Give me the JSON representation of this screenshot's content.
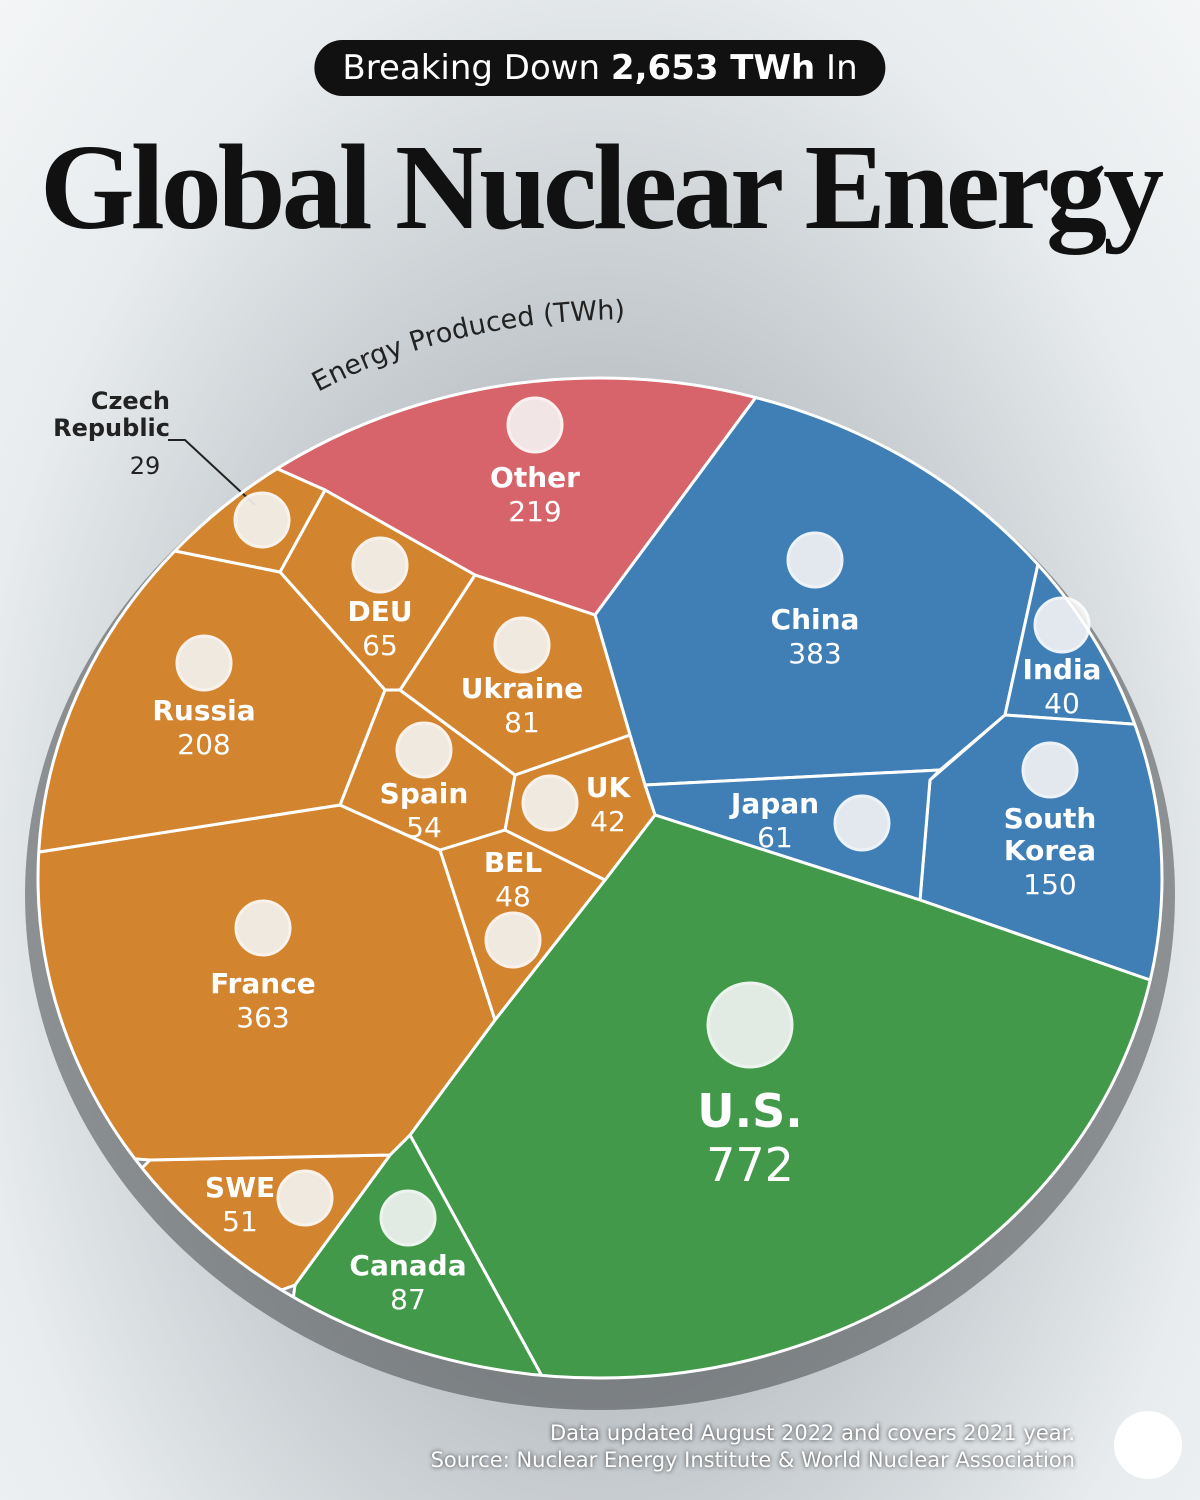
{
  "header": {
    "prefix": "Breaking Down",
    "highlight": "2,653 TWh",
    "suffix": "In"
  },
  "chart_data": {
    "type": "voronoi_treemap",
    "title": "Global Nuclear Energy",
    "subtitle": "Energy Produced (TWh)",
    "categories": [
      "Other",
      "China",
      "India",
      "South Korea",
      "Japan",
      "U.S.",
      "Canada",
      "SWE",
      "France",
      "BEL",
      "UK",
      "Spain",
      "Ukraine",
      "DEU",
      "Russia",
      "Czech Republic"
    ],
    "values": [
      219,
      383,
      40,
      150,
      61,
      772,
      87,
      51,
      363,
      48,
      42,
      54,
      81,
      65,
      208,
      29
    ],
    "colors": [
      "#d7646a",
      "#3f7fb6",
      "#3f7fb6",
      "#3f7fb6",
      "#3f7fb6",
      "#42994a",
      "#42994a",
      "#d3842f",
      "#d3842f",
      "#d3842f",
      "#d3842f",
      "#d3842f",
      "#d3842f",
      "#d3842f",
      "#d3842f",
      "#d3842f"
    ]
  },
  "footer": {
    "note": "Data updated August 2022 and covers 2021 year.",
    "source": "Source: Nuclear Energy Institute & World Nuclear Association"
  }
}
